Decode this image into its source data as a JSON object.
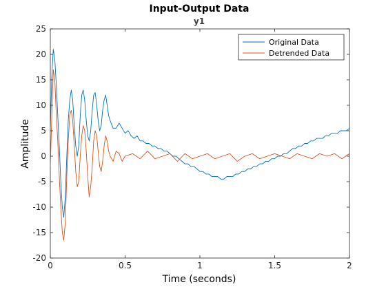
{
  "figure": {
    "title": "Input-Output Data",
    "subtitle": "y1"
  },
  "chart_data": {
    "type": "line",
    "title": "Input-Output Data",
    "subtitle": "y1",
    "xlabel": "Time (seconds)",
    "ylabel": "Amplitude",
    "xlim": [
      0,
      2
    ],
    "ylim": [
      -20,
      25
    ],
    "xticks": [
      0,
      0.5,
      1,
      1.5,
      2
    ],
    "xtick_labels": [
      "0",
      "0.5",
      "1",
      "1.5",
      "2"
    ],
    "yticks": [
      -20,
      -15,
      -10,
      -5,
      0,
      5,
      10,
      15,
      20,
      25
    ],
    "ytick_labels": [
      "-20",
      "-15",
      "-10",
      "-5",
      "0",
      "5",
      "10",
      "15",
      "20",
      "25"
    ],
    "grid": false,
    "legend": "top-right",
    "series": [
      {
        "name": "Original Data",
        "color": "#0072BD",
        "x": [
          0,
          0.01,
          0.02,
          0.03,
          0.04,
          0.05,
          0.06,
          0.07,
          0.08,
          0.09,
          0.1,
          0.11,
          0.12,
          0.13,
          0.14,
          0.15,
          0.16,
          0.17,
          0.18,
          0.19,
          0.2,
          0.21,
          0.22,
          0.23,
          0.24,
          0.25,
          0.26,
          0.27,
          0.28,
          0.29,
          0.3,
          0.31,
          0.32,
          0.33,
          0.34,
          0.35,
          0.36,
          0.37,
          0.38,
          0.39,
          0.4,
          0.42,
          0.44,
          0.46,
          0.48,
          0.5,
          0.52,
          0.54,
          0.56,
          0.58,
          0.6,
          0.62,
          0.64,
          0.66,
          0.68,
          0.7,
          0.72,
          0.74,
          0.76,
          0.78,
          0.8,
          0.82,
          0.84,
          0.86,
          0.88,
          0.9,
          0.92,
          0.94,
          0.96,
          0.98,
          1.0,
          1.02,
          1.04,
          1.06,
          1.08,
          1.1,
          1.12,
          1.14,
          1.16,
          1.18,
          1.2,
          1.22,
          1.24,
          1.26,
          1.28,
          1.3,
          1.32,
          1.34,
          1.36,
          1.38,
          1.4,
          1.42,
          1.44,
          1.46,
          1.48,
          1.5,
          1.52,
          1.54,
          1.56,
          1.58,
          1.6,
          1.62,
          1.64,
          1.66,
          1.68,
          1.7,
          1.72,
          1.74,
          1.76,
          1.78,
          1.8,
          1.82,
          1.84,
          1.86,
          1.88,
          1.9,
          1.92,
          1.94,
          1.96,
          1.98,
          2.0
        ],
        "y": [
          5,
          16,
          21,
          19,
          14,
          8,
          2,
          -5,
          -10,
          -12,
          -8,
          0,
          7,
          11,
          13,
          11,
          6,
          2,
          0,
          2,
          8,
          12,
          13,
          11,
          7,
          4,
          3,
          5,
          9,
          12,
          12.5,
          10,
          7,
          5,
          6,
          9,
          11,
          12,
          10,
          8,
          7,
          5.5,
          5.5,
          6.5,
          5.5,
          4.5,
          5,
          4,
          3.5,
          4,
          3,
          3,
          2.5,
          2.5,
          2,
          2,
          1.5,
          1.5,
          1,
          1,
          0.5,
          0,
          0,
          -0.5,
          -1,
          -1.5,
          -1.5,
          -2,
          -2,
          -2.5,
          -3,
          -3,
          -3.5,
          -3.5,
          -4,
          -4,
          -4,
          -4.5,
          -4.5,
          -4,
          -4,
          -4,
          -3.5,
          -3.5,
          -3,
          -3,
          -2.5,
          -2.5,
          -2,
          -2,
          -1.5,
          -1.5,
          -1,
          -1,
          -0.5,
          -0.5,
          0,
          0,
          0.5,
          0.5,
          1,
          1.5,
          1.5,
          2,
          2,
          2.5,
          2.5,
          3,
          3,
          3.5,
          3.5,
          3.5,
          4,
          4,
          4.5,
          4.5,
          4.5,
          5,
          5,
          5,
          5.5
        ]
      },
      {
        "name": "Detrended Data",
        "color": "#D95319",
        "x": [
          0,
          0.01,
          0.02,
          0.03,
          0.04,
          0.05,
          0.06,
          0.07,
          0.08,
          0.09,
          0.1,
          0.11,
          0.12,
          0.13,
          0.14,
          0.15,
          0.16,
          0.17,
          0.18,
          0.19,
          0.2,
          0.21,
          0.22,
          0.23,
          0.24,
          0.25,
          0.26,
          0.27,
          0.28,
          0.29,
          0.3,
          0.31,
          0.32,
          0.33,
          0.34,
          0.35,
          0.36,
          0.37,
          0.38,
          0.39,
          0.4,
          0.42,
          0.44,
          0.46,
          0.48,
          0.5,
          0.55,
          0.6,
          0.65,
          0.7,
          0.75,
          0.8,
          0.85,
          0.9,
          0.95,
          1.0,
          1.05,
          1.1,
          1.15,
          1.2,
          1.25,
          1.3,
          1.35,
          1.4,
          1.45,
          1.5,
          1.55,
          1.6,
          1.65,
          1.7,
          1.75,
          1.8,
          1.85,
          1.9,
          1.95,
          2.0
        ],
        "y": [
          -2,
          8,
          17,
          15,
          8,
          3,
          -4,
          -10,
          -15,
          -16.5,
          -13,
          -4,
          3,
          8,
          9,
          7,
          2,
          -3,
          -6,
          -5,
          0,
          4,
          6,
          5,
          1,
          -4,
          -8,
          -6,
          -2,
          3,
          5,
          4,
          1,
          -2,
          -3,
          -1,
          2,
          4,
          3,
          1,
          0,
          -1,
          1,
          0.5,
          -1,
          0,
          0.5,
          -0.5,
          1,
          -0.5,
          0,
          0.5,
          -1,
          0.5,
          -0.5,
          0,
          0.5,
          -0.5,
          0,
          0.5,
          -1,
          0,
          0.5,
          -0.5,
          0,
          0.5,
          0,
          -0.5,
          0.5,
          0,
          -0.5,
          0.5,
          0,
          0.5,
          -0.5,
          0.5
        ]
      }
    ]
  }
}
